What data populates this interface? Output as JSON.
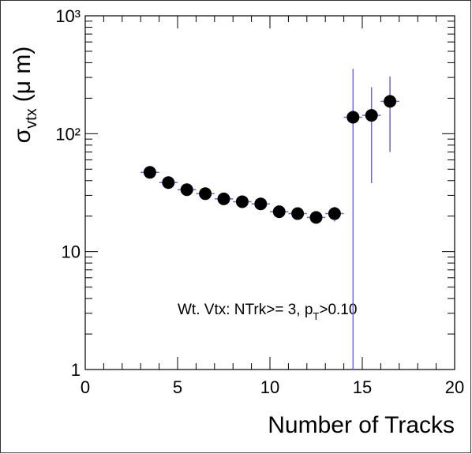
{
  "chart_data": {
    "type": "scatter",
    "ylabel": {
      "symbol": "σ",
      "subscript": "vtx",
      "unit": "(μ m)"
    },
    "xlabel": "Number of Tracks",
    "annotation": {
      "before": "Wt. Vtx: NTrk>= 3, p",
      "subscript": "T",
      "after": ">0.10"
    },
    "x": [
      3.5,
      4.5,
      5.5,
      6.5,
      7.5,
      8.5,
      9.5,
      10.5,
      11.5,
      12.5,
      13.5,
      14.5,
      15.5,
      16.5
    ],
    "values": [
      47,
      38.5,
      33.5,
      31,
      28,
      26.5,
      25.4,
      21.8,
      21,
      19.5,
      21,
      138,
      143,
      188
    ],
    "errors": [
      1.5,
      1.3,
      1.2,
      1.2,
      1.2,
      1.2,
      1.2,
      1.2,
      1.2,
      1.2,
      3,
      217,
      105,
      118
    ],
    "xerr": 0.5,
    "color": "#000000",
    "error_color": "#6b6bd0",
    "xlim": [
      0,
      20
    ],
    "xticks": [
      0,
      5,
      10,
      15,
      20
    ],
    "ylim": [
      1,
      1000
    ],
    "log_y": true,
    "yticks": [
      1,
      10,
      {
        "value": 100,
        "label": "10²"
      },
      {
        "value": 1000,
        "label": "10³"
      }
    ]
  }
}
